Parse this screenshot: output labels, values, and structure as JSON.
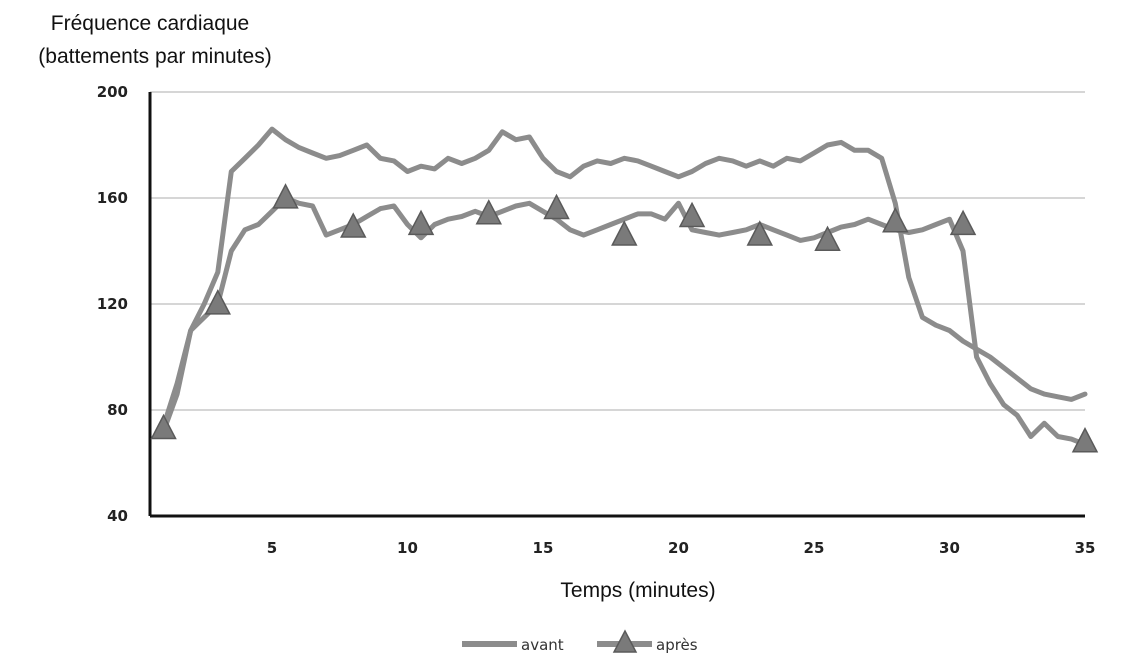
{
  "chart_data": {
    "type": "line",
    "ylabel": [
      "Fréquence cardiaque",
      "(battements par minutes)"
    ],
    "xlabel": "Temps (minutes)",
    "ylim": [
      40,
      200
    ],
    "yticks": [
      40,
      80,
      120,
      160,
      200
    ],
    "xlim": [
      0.5,
      35
    ],
    "xticks": [
      5,
      10,
      15,
      20,
      25,
      30,
      35
    ],
    "grid": "horizontal",
    "legend_position": "bottom",
    "series": [
      {
        "name": "avant",
        "color": "#8c8c8c",
        "marker": "none",
        "x": [
          1,
          1.5,
          2,
          2.5,
          3,
          3.5,
          4,
          4.5,
          5,
          5.5,
          6,
          6.5,
          7,
          7.5,
          8,
          8.5,
          9,
          9.5,
          10,
          10.5,
          11,
          11.5,
          12,
          12.5,
          13,
          13.5,
          14,
          14.5,
          15,
          15.5,
          16,
          16.5,
          17,
          17.5,
          18,
          18.5,
          19,
          19.5,
          20,
          20.5,
          21,
          21.5,
          22,
          22.5,
          23,
          23.5,
          24,
          24.5,
          25,
          25.5,
          26,
          26.5,
          27,
          27.5,
          28,
          28.5,
          29,
          29.5,
          30,
          30.5,
          31,
          31.5,
          32,
          32.5,
          33,
          33.5,
          34,
          34.5,
          35
        ],
        "y": [
          74,
          90,
          110,
          120,
          132,
          170,
          175,
          180,
          186,
          182,
          179,
          177,
          175,
          176,
          178,
          180,
          175,
          174,
          170,
          172,
          171,
          175,
          173,
          175,
          178,
          185,
          182,
          183,
          175,
          170,
          168,
          172,
          174,
          173,
          175,
          174,
          172,
          170,
          168,
          170,
          173,
          175,
          174,
          172,
          174,
          172,
          175,
          174,
          177,
          180,
          181,
          178,
          178,
          175,
          158,
          130,
          115,
          112,
          110,
          106,
          103,
          100,
          96,
          92,
          88,
          86,
          85,
          84,
          86
        ]
      },
      {
        "name": "après",
        "color": "#8c8c8c",
        "marker": "triangle",
        "x": [
          1,
          1.5,
          2,
          2.5,
          3,
          3.5,
          4,
          4.5,
          5,
          5.5,
          6,
          6.5,
          7,
          7.5,
          8,
          8.5,
          9,
          9.5,
          10,
          10.5,
          11,
          11.5,
          12,
          12.5,
          13,
          13.5,
          14,
          14.5,
          15,
          15.5,
          16,
          16.5,
          17,
          17.5,
          18,
          18.5,
          19,
          19.5,
          20,
          20.5,
          21,
          21.5,
          22,
          22.5,
          23,
          23.5,
          24,
          24.5,
          25,
          25.5,
          26,
          26.5,
          27,
          27.5,
          28,
          28.5,
          29,
          29.5,
          30,
          30.5,
          31,
          31.5,
          32,
          32.5,
          33,
          33.5,
          34,
          34.5,
          35
        ],
        "y": [
          72,
          86,
          110,
          115,
          120,
          140,
          148,
          150,
          155,
          160,
          158,
          157,
          146,
          148,
          150,
          153,
          156,
          157,
          150,
          145,
          150,
          152,
          153,
          155,
          153,
          155,
          157,
          158,
          155,
          152,
          148,
          146,
          148,
          150,
          152,
          154,
          154,
          152,
          158,
          148,
          147,
          146,
          147,
          148,
          150,
          148,
          146,
          144,
          145,
          147,
          149,
          150,
          152,
          150,
          148,
          147,
          148,
          150,
          152,
          140,
          100,
          90,
          82,
          78,
          70,
          75,
          70,
          69,
          67
        ],
        "marker_points": [
          [
            1.0,
            73
          ],
          [
            3.0,
            120
          ],
          [
            5.5,
            160
          ],
          [
            8.0,
            149
          ],
          [
            10.5,
            150
          ],
          [
            13.0,
            154
          ],
          [
            15.5,
            156
          ],
          [
            18.0,
            146
          ],
          [
            20.5,
            153
          ],
          [
            23.0,
            146
          ],
          [
            25.5,
            144
          ],
          [
            28.0,
            151
          ],
          [
            30.5,
            150
          ],
          [
            35.0,
            68
          ]
        ]
      }
    ]
  }
}
